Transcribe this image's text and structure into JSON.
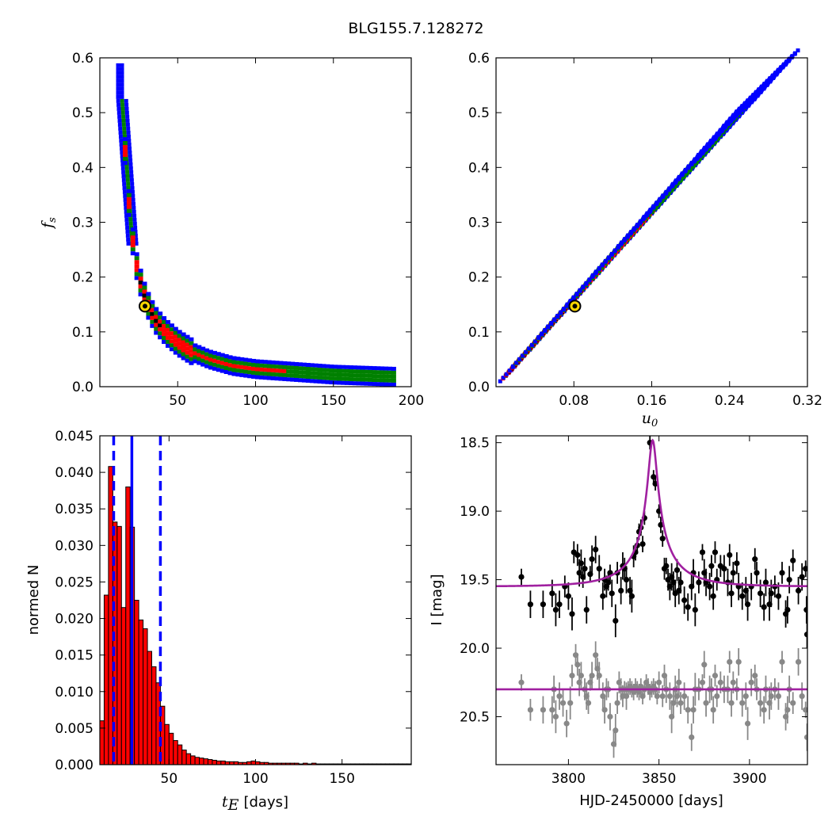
{
  "figure_title": "BLG155.7.128272",
  "colors": {
    "outer": "#0000ff",
    "mid": "#008000",
    "inner": "#ff0000",
    "core": "#000000",
    "model": "#a020a0",
    "baseline": "#888888",
    "bar": "#ff0000",
    "marker": "#ffd700"
  },
  "chart_data": [
    {
      "type": "heatmap",
      "panel": "top-left",
      "ylabel_main": "f",
      "ylabel_sub": "s",
      "xlim": [
        0,
        200
      ],
      "ylim": [
        0.0,
        0.6
      ],
      "xticks": [
        50,
        100,
        150,
        200
      ],
      "xtick_labels": [
        "50",
        "100",
        "150",
        "200"
      ],
      "yticks": [
        0.0,
        0.1,
        0.2,
        0.3,
        0.4,
        0.5,
        0.6
      ],
      "ytick_labels": [
        "0.0",
        "0.1",
        "0.2",
        "0.3",
        "0.4",
        "0.5",
        "0.6"
      ],
      "curve": {
        "x": [
          14,
          16,
          18,
          20,
          22,
          25,
          28,
          32,
          36,
          42,
          50,
          60,
          70,
          85,
          100,
          120,
          150,
          190
        ],
        "y": [
          0.53,
          0.43,
          0.35,
          0.29,
          0.24,
          0.2,
          0.17,
          0.14,
          0.12,
          0.1,
          0.08,
          0.062,
          0.05,
          0.038,
          0.032,
          0.028,
          0.022,
          0.018
        ]
      },
      "best_fit": {
        "x": 29,
        "y": 0.147
      }
    },
    {
      "type": "heatmap",
      "panel": "top-right",
      "xlabel_main": "u",
      "xlabel_sub": "0",
      "xlim": [
        0.0,
        0.32
      ],
      "ylim": [
        0.0,
        0.6
      ],
      "xticks": [
        0.08,
        0.16,
        0.24,
        0.32
      ],
      "xtick_labels": [
        "0.08",
        "0.16",
        "0.24",
        "0.32"
      ],
      "yticks": [
        0.0,
        0.1,
        0.2,
        0.3,
        0.4,
        0.5,
        0.6
      ],
      "ytick_labels": [
        "0.0",
        "0.1",
        "0.2",
        "0.3",
        "0.4",
        "0.5",
        "0.6"
      ],
      "line": {
        "x": [
          0.01,
          0.28
        ],
        "y": [
          0.02,
          0.56
        ]
      },
      "best_fit": {
        "x": 0.081,
        "y": 0.147
      }
    },
    {
      "type": "bar",
      "panel": "bottom-left",
      "xlabel_main": "t",
      "xlabel_sub": "E",
      "xlabel_unit": "[days]",
      "ylabel": "normed N",
      "xlim": [
        10,
        190
      ],
      "ylim": [
        0.0,
        0.045
      ],
      "xticks": [
        50,
        100,
        150
      ],
      "xtick_labels": [
        "50",
        "100",
        "150"
      ],
      "yticks": [
        0.0,
        0.005,
        0.01,
        0.015,
        0.02,
        0.025,
        0.03,
        0.035,
        0.04,
        0.045
      ],
      "ytick_labels": [
        "0.000",
        "0.005",
        "0.010",
        "0.015",
        "0.020",
        "0.025",
        "0.030",
        "0.035",
        "0.040",
        "0.045"
      ],
      "bin_start": 10,
      "bin_width": 2.5,
      "values": [
        0.006,
        0.0232,
        0.0408,
        0.0332,
        0.0326,
        0.0215,
        0.038,
        0.0325,
        0.0225,
        0.0198,
        0.0186,
        0.0155,
        0.0134,
        0.0112,
        0.008,
        0.0055,
        0.0043,
        0.0033,
        0.0027,
        0.002,
        0.0015,
        0.0012,
        0.001,
        0.0009,
        0.0008,
        0.0007,
        0.0006,
        0.0005,
        0.0005,
        0.0004,
        0.0004,
        0.0004,
        0.0003,
        0.0003,
        0.0004,
        0.0005,
        0.0004,
        0.0003,
        0.0003,
        0.0002,
        0.0002,
        0.0002,
        0.0002,
        0.0002,
        0.0002,
        0.0002,
        0.0001,
        0.0002,
        0.0001,
        0.0002,
        0.0001,
        0.0001,
        0.0001,
        0.0001,
        0.0001,
        0.0001,
        0.0001,
        0.0001,
        0.0001,
        0.0001,
        0.0001,
        0.0001,
        0.0001,
        0.0001,
        0.0001,
        0.0001,
        0.0001,
        0.0001,
        0.0001,
        0.0001,
        0.0001,
        0.0001
      ],
      "vlines": [
        {
          "x": 18,
          "style": "dashed"
        },
        {
          "x": 28.5,
          "style": "solid"
        },
        {
          "x": 45,
          "style": "dashed"
        }
      ]
    },
    {
      "type": "scatter",
      "panel": "bottom-right",
      "xlabel": "HJD-2450000 [days]",
      "ylabel": "I [mag]",
      "xlim": [
        3760,
        3932
      ],
      "ylim": [
        20.85,
        18.45
      ],
      "y_inverted": true,
      "xticks": [
        3800,
        3850,
        3900
      ],
      "xtick_labels": [
        "3800",
        "3850",
        "3900"
      ],
      "yticks": [
        18.5,
        19.0,
        19.5,
        20.0,
        20.5
      ],
      "ytick_labels": [
        "18.5",
        "19.0",
        "19.5",
        "20.0",
        "20.5"
      ],
      "model": {
        "baseline": 19.55,
        "t0": 3846.5,
        "tE": 28.5,
        "u0": 0.081,
        "fs": 0.147
      },
      "flat_model": {
        "baseline": 20.3
      },
      "event_points": [
        [
          3774,
          19.48,
          0.06
        ],
        [
          3779,
          19.68,
          0.1
        ],
        [
          3786,
          19.68,
          0.1
        ],
        [
          3791,
          19.6,
          0.1
        ],
        [
          3793,
          19.72,
          0.12
        ],
        [
          3795,
          19.68,
          0.1
        ],
        [
          3798,
          19.55,
          0.08
        ],
        [
          3800,
          19.62,
          0.1
        ],
        [
          3802,
          19.75,
          0.12
        ],
        [
          3803,
          19.3,
          0.08
        ],
        [
          3805,
          19.32,
          0.08
        ],
        [
          3806,
          19.45,
          0.1
        ],
        [
          3807,
          19.38,
          0.1
        ],
        [
          3808,
          19.48,
          0.08
        ],
        [
          3809,
          19.42,
          0.08
        ],
        [
          3810,
          19.72,
          0.1
        ],
        [
          3812,
          19.46,
          0.06
        ],
        [
          3813,
          19.35,
          0.1
        ],
        [
          3815,
          19.28,
          0.1
        ],
        [
          3817,
          19.42,
          0.1
        ],
        [
          3819,
          19.62,
          0.1
        ],
        [
          3820,
          19.5,
          0.08
        ],
        [
          3821,
          19.55,
          0.08
        ],
        [
          3822,
          19.52,
          0.06
        ],
        [
          3823,
          19.45,
          0.06
        ],
        [
          3824,
          19.6,
          0.1
        ],
        [
          3826,
          19.8,
          0.12
        ],
        [
          3827,
          19.45,
          0.08
        ],
        [
          3829,
          19.58,
          0.1
        ],
        [
          3830,
          19.4,
          0.1
        ],
        [
          3831,
          19.42,
          0.08
        ],
        [
          3832,
          19.5,
          0.1
        ],
        [
          3834,
          19.58,
          0.1
        ],
        [
          3835,
          19.62,
          0.12
        ],
        [
          3836,
          19.33,
          0.08
        ],
        [
          3837,
          19.3,
          0.06
        ],
        [
          3838,
          19.25,
          0.06
        ],
        [
          3839,
          19.15,
          0.06
        ],
        [
          3840,
          19.12,
          0.06
        ],
        [
          3841,
          19.24,
          0.06
        ],
        [
          3842,
          19.05,
          0.05
        ],
        [
          3845,
          18.5,
          0.05
        ],
        [
          3847,
          18.75,
          0.05
        ],
        [
          3848,
          18.8,
          0.05
        ],
        [
          3850,
          19.0,
          0.05
        ],
        [
          3851,
          19.1,
          0.06
        ],
        [
          3852,
          19.2,
          0.06
        ],
        [
          3853,
          19.42,
          0.08
        ],
        [
          3854,
          19.4,
          0.06
        ],
        [
          3855,
          19.5,
          0.08
        ],
        [
          3856,
          19.55,
          0.1
        ],
        [
          3857,
          19.48,
          0.1
        ],
        [
          3858,
          19.52,
          0.08
        ],
        [
          3859,
          19.6,
          0.1
        ],
        [
          3860,
          19.43,
          0.08
        ],
        [
          3861,
          19.58,
          0.1
        ],
        [
          3862,
          19.52,
          0.08
        ],
        [
          3864,
          19.65,
          0.1
        ],
        [
          3866,
          19.7,
          0.1
        ],
        [
          3868,
          19.55,
          0.1
        ],
        [
          3869,
          19.45,
          0.1
        ],
        [
          3870,
          19.72,
          0.12
        ],
        [
          3872,
          19.52,
          0.08
        ],
        [
          3874,
          19.3,
          0.06
        ],
        [
          3875,
          19.45,
          0.1
        ],
        [
          3876,
          19.52,
          0.1
        ],
        [
          3878,
          19.55,
          0.1
        ],
        [
          3879,
          19.4,
          0.08
        ],
        [
          3880,
          19.62,
          0.1
        ],
        [
          3881,
          19.3,
          0.08
        ],
        [
          3882,
          19.5,
          0.08
        ],
        [
          3884,
          19.4,
          0.08
        ],
        [
          3886,
          19.42,
          0.1
        ],
        [
          3888,
          19.52,
          0.1
        ],
        [
          3889,
          19.32,
          0.08
        ],
        [
          3890,
          19.6,
          0.1
        ],
        [
          3891,
          19.45,
          0.08
        ],
        [
          3893,
          19.38,
          0.08
        ],
        [
          3894,
          19.55,
          0.1
        ],
        [
          3896,
          19.62,
          0.1
        ],
        [
          3898,
          19.58,
          0.1
        ],
        [
          3899,
          19.68,
          0.12
        ],
        [
          3901,
          19.55,
          0.1
        ],
        [
          3903,
          19.35,
          0.08
        ],
        [
          3904,
          19.45,
          0.08
        ],
        [
          3906,
          19.6,
          0.1
        ],
        [
          3908,
          19.7,
          0.1
        ],
        [
          3909,
          19.52,
          0.1
        ],
        [
          3911,
          19.68,
          0.12
        ],
        [
          3912,
          19.6,
          0.1
        ],
        [
          3914,
          19.55,
          0.08
        ],
        [
          3916,
          19.62,
          0.1
        ],
        [
          3918,
          19.45,
          0.08
        ],
        [
          3920,
          19.75,
          0.1
        ],
        [
          3921,
          19.72,
          0.1
        ],
        [
          3922,
          19.5,
          0.1
        ],
        [
          3924,
          19.36,
          0.08
        ],
        [
          3927,
          19.58,
          0.1
        ],
        [
          3929,
          19.48,
          0.1
        ],
        [
          3931,
          19.42,
          0.06
        ],
        [
          3931.5,
          19.72,
          0.1
        ],
        [
          3931.8,
          19.9,
          0.1
        ]
      ],
      "baseline_points": [
        [
          3774,
          20.25,
          0.06
        ],
        [
          3779,
          20.45,
          0.08
        ],
        [
          3786,
          20.45,
          0.1
        ],
        [
          3791,
          20.45,
          0.1
        ],
        [
          3792,
          20.3,
          0.1
        ],
        [
          3793,
          20.5,
          0.12
        ],
        [
          3795,
          20.35,
          0.1
        ],
        [
          3797,
          20.4,
          0.1
        ],
        [
          3799,
          20.55,
          0.1
        ],
        [
          3801,
          20.4,
          0.12
        ],
        [
          3802,
          20.2,
          0.08
        ],
        [
          3804,
          20.05,
          0.08
        ],
        [
          3805,
          20.12,
          0.08
        ],
        [
          3806,
          20.25,
          0.1
        ],
        [
          3807,
          20.2,
          0.1
        ],
        [
          3809,
          20.3,
          0.08
        ],
        [
          3810,
          20.35,
          0.1
        ],
        [
          3811,
          20.4,
          0.08
        ],
        [
          3812,
          20.25,
          0.06
        ],
        [
          3813,
          20.2,
          0.1
        ],
        [
          3815,
          20.05,
          0.1
        ],
        [
          3816,
          20.15,
          0.08
        ],
        [
          3817,
          20.2,
          0.1
        ],
        [
          3819,
          20.35,
          0.1
        ],
        [
          3820,
          20.45,
          0.1
        ],
        [
          3821,
          20.3,
          0.08
        ],
        [
          3822,
          20.3,
          0.06
        ],
        [
          3823,
          20.5,
          0.1
        ],
        [
          3825,
          20.7,
          0.1
        ],
        [
          3826,
          20.6,
          0.12
        ],
        [
          3827,
          20.4,
          0.08
        ],
        [
          3828,
          20.25,
          0.08
        ],
        [
          3829,
          20.3,
          0.08
        ],
        [
          3830,
          20.35,
          0.08
        ],
        [
          3831,
          20.3,
          0.06
        ],
        [
          3832,
          20.35,
          0.1
        ],
        [
          3833,
          20.3,
          0.06
        ],
        [
          3834,
          20.28,
          0.06
        ],
        [
          3835,
          20.3,
          0.06
        ],
        [
          3836,
          20.32,
          0.06
        ],
        [
          3837,
          20.28,
          0.06
        ],
        [
          3838,
          20.3,
          0.06
        ],
        [
          3839,
          20.32,
          0.06
        ],
        [
          3840,
          20.28,
          0.06
        ],
        [
          3841,
          20.35,
          0.06
        ],
        [
          3842,
          20.3,
          0.06
        ],
        [
          3843,
          20.25,
          0.06
        ],
        [
          3844,
          20.28,
          0.06
        ],
        [
          3845,
          20.32,
          0.06
        ],
        [
          3846,
          20.3,
          0.06
        ],
        [
          3847,
          20.28,
          0.06
        ],
        [
          3848,
          20.3,
          0.06
        ],
        [
          3849,
          20.35,
          0.06
        ],
        [
          3850,
          20.25,
          0.08
        ],
        [
          3852,
          20.35,
          0.08
        ],
        [
          3853,
          20.2,
          0.08
        ],
        [
          3854,
          20.3,
          0.1
        ],
        [
          3856,
          20.35,
          0.1
        ],
        [
          3857,
          20.5,
          0.12
        ],
        [
          3858,
          20.4,
          0.1
        ],
        [
          3859,
          20.3,
          0.1
        ],
        [
          3860,
          20.35,
          0.08
        ],
        [
          3861,
          20.25,
          0.1
        ],
        [
          3862,
          20.4,
          0.08
        ],
        [
          3864,
          20.35,
          0.1
        ],
        [
          3866,
          20.45,
          0.1
        ],
        [
          3868,
          20.65,
          0.1
        ],
        [
          3869,
          20.45,
          0.1
        ],
        [
          3870,
          20.3,
          0.12
        ],
        [
          3872,
          20.3,
          0.08
        ],
        [
          3874,
          20.25,
          0.06
        ],
        [
          3875,
          20.12,
          0.1
        ],
        [
          3876,
          20.4,
          0.1
        ],
        [
          3878,
          20.3,
          0.1
        ],
        [
          3879,
          20.3,
          0.08
        ],
        [
          3880,
          20.45,
          0.1
        ],
        [
          3881,
          20.2,
          0.08
        ],
        [
          3882,
          20.35,
          0.08
        ],
        [
          3884,
          20.25,
          0.08
        ],
        [
          3886,
          20.3,
          0.1
        ],
        [
          3888,
          20.3,
          0.1
        ],
        [
          3889,
          20.1,
          0.08
        ],
        [
          3890,
          20.4,
          0.1
        ],
        [
          3891,
          20.25,
          0.08
        ],
        [
          3893,
          20.3,
          0.08
        ],
        [
          3894,
          20.1,
          0.1
        ],
        [
          3896,
          20.4,
          0.1
        ],
        [
          3898,
          20.35,
          0.1
        ],
        [
          3899,
          20.55,
          0.12
        ],
        [
          3901,
          20.25,
          0.1
        ],
        [
          3903,
          20.2,
          0.08
        ],
        [
          3904,
          20.3,
          0.08
        ],
        [
          3906,
          20.4,
          0.1
        ],
        [
          3908,
          20.45,
          0.1
        ],
        [
          3909,
          20.3,
          0.1
        ],
        [
          3911,
          20.4,
          0.12
        ],
        [
          3912,
          20.35,
          0.1
        ],
        [
          3914,
          20.3,
          0.08
        ],
        [
          3916,
          20.35,
          0.1
        ],
        [
          3918,
          20.1,
          0.08
        ],
        [
          3920,
          20.5,
          0.1
        ],
        [
          3921,
          20.45,
          0.1
        ],
        [
          3922,
          20.3,
          0.1
        ],
        [
          3924,
          20.4,
          0.08
        ],
        [
          3927,
          20.1,
          0.1
        ],
        [
          3929,
          20.35,
          0.1
        ],
        [
          3931,
          20.45,
          0.06
        ],
        [
          3931.8,
          20.65,
          0.1
        ]
      ]
    }
  ]
}
